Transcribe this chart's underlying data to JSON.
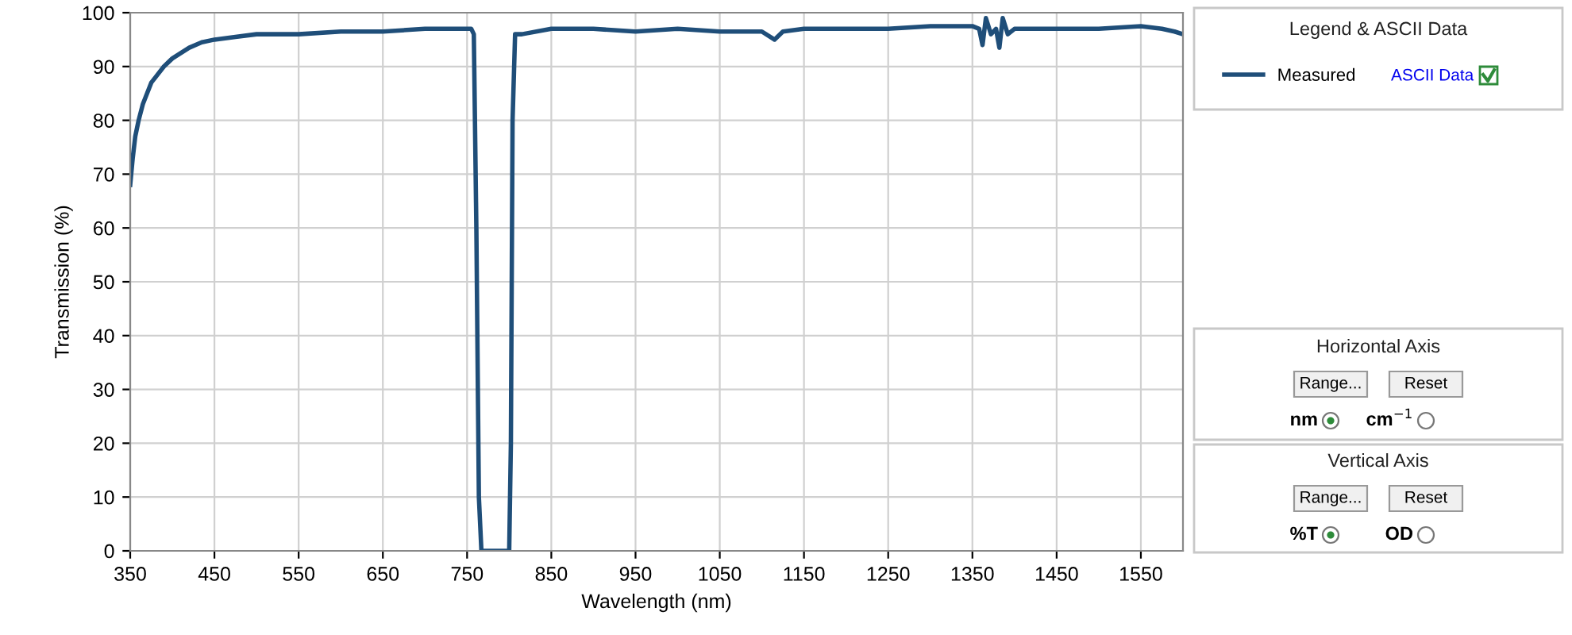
{
  "chart_data": {
    "type": "line",
    "xlabel": "Wavelength (nm)",
    "ylabel": "Transmission (%)",
    "x": [
      350,
      353,
      356,
      360,
      365,
      370,
      375,
      380,
      390,
      400,
      410,
      420,
      435,
      450,
      475,
      500,
      550,
      600,
      650,
      700,
      740,
      755,
      758,
      761,
      764,
      767,
      800,
      802,
      804,
      807,
      815,
      850,
      900,
      950,
      1000,
      1050,
      1100,
      1115,
      1125,
      1150,
      1200,
      1250,
      1300,
      1350,
      1358,
      1362,
      1366,
      1372,
      1378,
      1382,
      1386,
      1392,
      1400,
      1450,
      1500,
      1550,
      1575,
      1590,
      1600
    ],
    "series": [
      {
        "name": "Measured",
        "color": "#1f4e79",
        "values": [
          68,
          73,
          77,
          80,
          83,
          85,
          87,
          88,
          90,
          91.5,
          92.5,
          93.5,
          94.5,
          95,
          95.5,
          96,
          96,
          96.5,
          96.5,
          97,
          97,
          97,
          96,
          60,
          10,
          0,
          0,
          20,
          80,
          96,
          96,
          97,
          97,
          96.5,
          97,
          96.5,
          96.5,
          95,
          96.5,
          97,
          97,
          97,
          97.5,
          97.5,
          97,
          94,
          99,
          96,
          97,
          93.5,
          99,
          96,
          97,
          97,
          97,
          97.5,
          97,
          96.5,
          96
        ]
      }
    ],
    "xlim": [
      350,
      1600
    ],
    "xticks": [
      350,
      450,
      550,
      650,
      750,
      850,
      950,
      1050,
      1150,
      1250,
      1350,
      1450,
      1550
    ],
    "ylim": [
      0,
      100
    ],
    "yticks": [
      0,
      10,
      20,
      30,
      40,
      50,
      60,
      70,
      80,
      90,
      100
    ],
    "grid": true,
    "legend": "top right",
    "line_style": "solid",
    "marker": "none",
    "annotations": [
      "Legend & ASCII Data",
      "ASCII Data",
      "Horizontal Axis",
      "Range...",
      "Reset",
      "nm",
      "cm$^{−1}$",
      "Vertical Axis",
      "Range...",
      "Reset",
      "%T",
      "OD"
    ]
  }
}
